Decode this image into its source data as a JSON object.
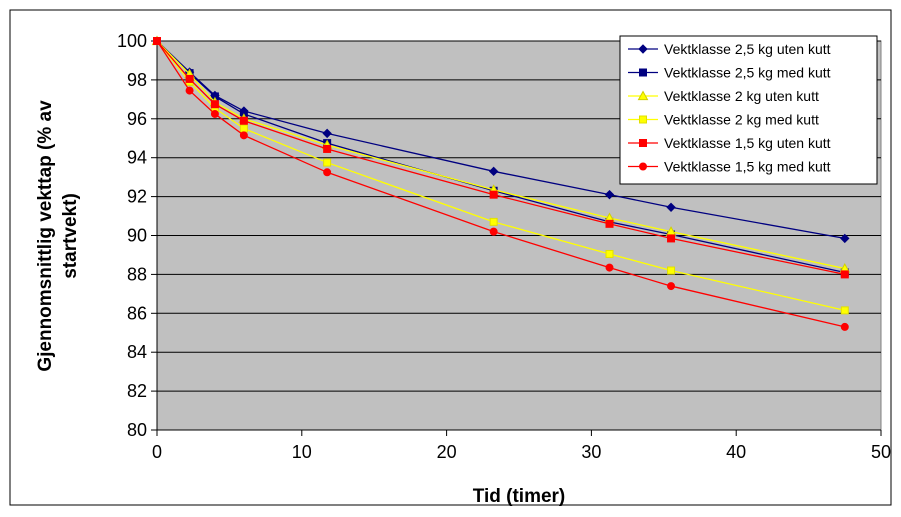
{
  "chart_data": {
    "type": "line",
    "title": "",
    "xlabel": "Tid (timer)",
    "ylabel_lines": [
      "Gjennomsnittlig vekttap (% av",
      "startvekt)"
    ],
    "xlim": [
      0,
      50
    ],
    "ylim": [
      80,
      100
    ],
    "x_ticks": [
      "0",
      "10",
      "20",
      "30",
      "40",
      "50"
    ],
    "y_ticks": [
      "80",
      "82",
      "84",
      "86",
      "88",
      "90",
      "92",
      "94",
      "96",
      "98",
      "100"
    ],
    "grid": "horizontal",
    "legend_position": "top-right",
    "x": [
      0,
      2.25,
      4,
      6,
      11.75,
      23.25,
      31.25,
      35.5,
      47.5
    ],
    "series": [
      {
        "name": "Vektklasse 2,5 kg uten kutt",
        "color": "#000080",
        "marker": "diamond",
        "values": [
          100,
          98.4,
          97.2,
          96.4,
          95.25,
          93.3,
          92.1,
          91.45,
          89.85
        ]
      },
      {
        "name": "Vektklasse 2,5 kg med kutt",
        "color": "#000080",
        "marker": "square",
        "values": [
          100,
          98.35,
          97.15,
          96.25,
          94.75,
          92.3,
          90.7,
          90.05,
          88.1
        ]
      },
      {
        "name": "Vektklasse 2 kg uten kutt",
        "color": "#ffff00",
        "marker": "triangle",
        "values": [
          100,
          98.3,
          96.85,
          96.0,
          94.65,
          92.35,
          90.9,
          90.2,
          88.3
        ]
      },
      {
        "name": "Vektklasse 2 kg med kutt",
        "color": "#ffff00",
        "marker": "square",
        "values": [
          100,
          97.9,
          96.55,
          95.5,
          93.75,
          90.7,
          89.05,
          88.2,
          86.15
        ]
      },
      {
        "name": "Vektklasse 1,5 kg uten kutt",
        "color": "#ff0000",
        "marker": "square",
        "values": [
          100,
          98.05,
          96.75,
          95.9,
          94.45,
          92.1,
          90.6,
          89.85,
          88.0
        ]
      },
      {
        "name": "Vektklasse 1,5 kg med kutt",
        "color": "#ff0000",
        "marker": "circle",
        "values": [
          100,
          97.45,
          96.25,
          95.15,
          93.25,
          90.2,
          88.35,
          87.4,
          85.3
        ]
      }
    ],
    "colors": {
      "plot_background": "#c0c0c0",
      "gridline": "#000000",
      "border": "#808080"
    }
  }
}
